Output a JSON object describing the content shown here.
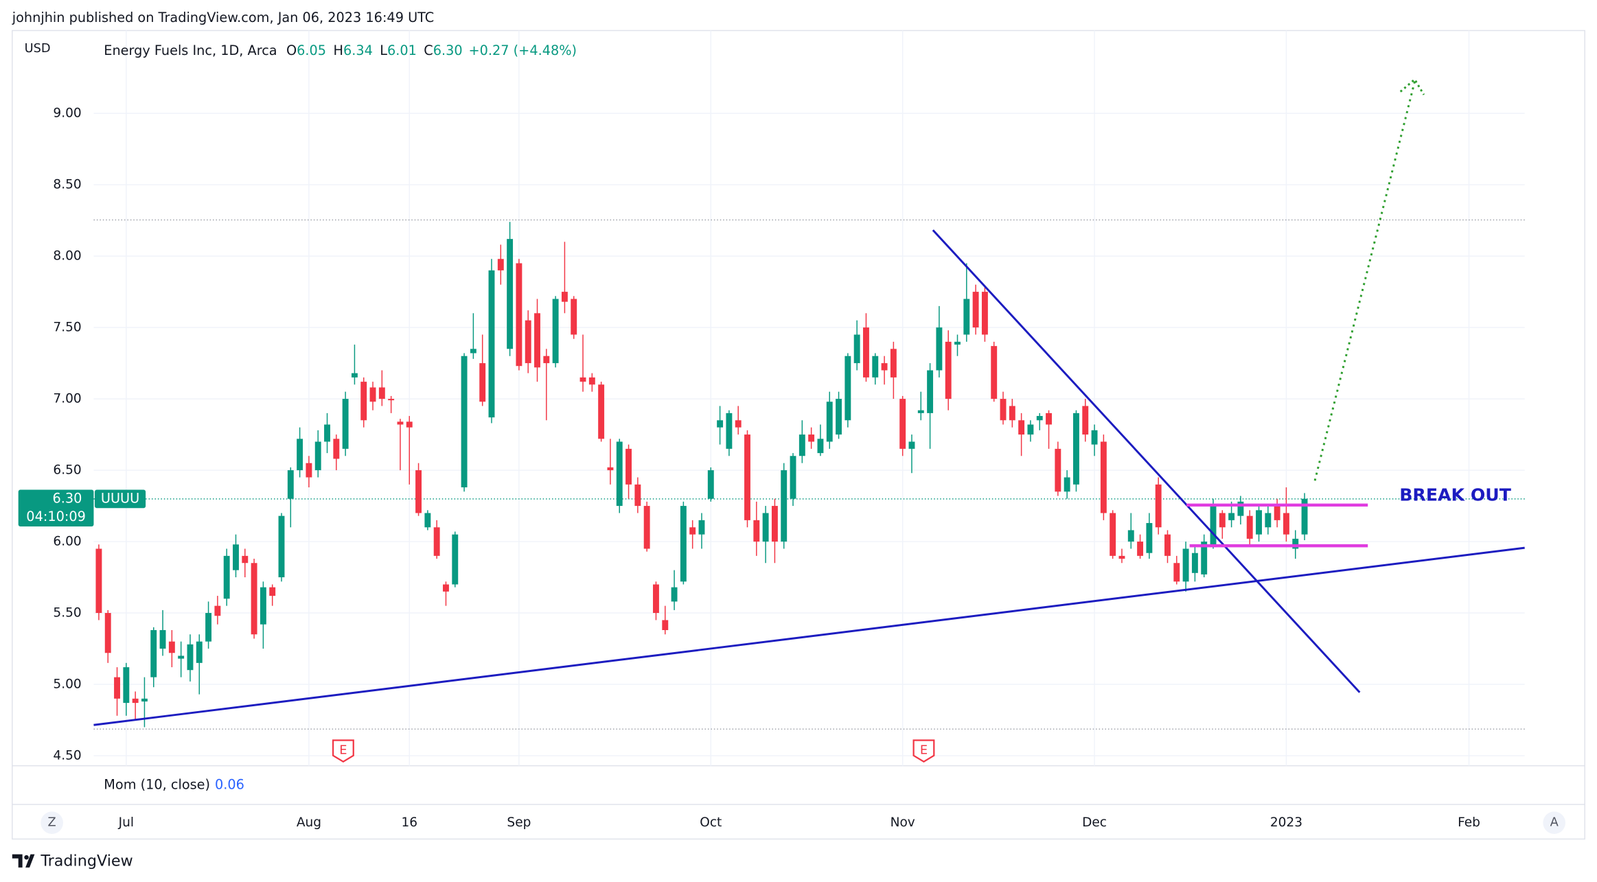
{
  "header": "johnjhin published on TradingView.com, Jan 06, 2023 16:49 UTC",
  "footer": "TradingView",
  "chart_data": {
    "type": "candlestick",
    "currency": "USD",
    "legend": {
      "title": "Energy Fuels Inc, 1D, Arca",
      "items": [
        {
          "key": "O",
          "value": "6.05"
        },
        {
          "key": "H",
          "value": "6.34"
        },
        {
          "key": "L",
          "value": "6.01"
        },
        {
          "key": "C",
          "value": "6.30"
        }
      ],
      "change": "+0.27 (+4.48%)"
    },
    "last_price": {
      "price": "6.30",
      "countdown": "04:10:09",
      "symbol": "UUUU"
    },
    "annotation": "BREAK OUT",
    "indicator": {
      "name": "Mom (10, close)",
      "value": "0.06"
    },
    "events": [
      "E",
      "E"
    ],
    "corner_buttons": [
      "Z",
      "A"
    ],
    "up_color": "#089981",
    "down_color": "#f23645",
    "grid": true,
    "ylim": [
      4.43,
      9.58
    ],
    "yticks": [
      {
        "value": 4.5,
        "label": "4.50"
      },
      {
        "value": 5,
        "label": "5.00"
      },
      {
        "value": 5.5,
        "label": "5.50"
      },
      {
        "value": 6,
        "label": "6.00"
      },
      {
        "value": 6.5,
        "label": "6.50"
      },
      {
        "value": 7,
        "label": "7.00"
      },
      {
        "value": 7.5,
        "label": "7.50"
      },
      {
        "value": 8,
        "label": "8.00"
      },
      {
        "value": 8.5,
        "label": "8.50"
      },
      {
        "value": 9,
        "label": "9.00"
      }
    ],
    "xlim": [
      -0.56,
      156.1
    ],
    "xticks": [
      {
        "value": 3,
        "label": "Jul"
      },
      {
        "value": 23,
        "label": "Aug"
      },
      {
        "value": 34,
        "label": "16"
      },
      {
        "value": 46,
        "label": "Sep"
      },
      {
        "value": 67,
        "label": "Oct"
      },
      {
        "value": 88,
        "label": "Nov"
      },
      {
        "value": 109,
        "label": "Dec"
      },
      {
        "value": 130,
        "label": "2023"
      },
      {
        "value": 150,
        "label": "Feb"
      }
    ],
    "open": [
      5.95,
      5.5,
      5.05,
      4.87,
      4.9,
      4.88,
      5.05,
      5.25,
      5.3,
      5.18,
      5.1,
      5.15,
      5.3,
      5.55,
      5.6,
      5.8,
      5.9,
      5.85,
      5.42,
      5.68,
      5.75,
      6.3,
      6.5,
      6.55,
      6.5,
      6.7,
      6.72,
      6.65,
      7.15,
      7.12,
      7.08,
      7.08,
      7.0,
      6.84,
      6.84,
      6.5,
      6.1,
      6.1,
      5.7,
      5.7,
      6.38,
      7.32,
      7.25,
      6.87,
      7.98,
      7.35,
      7.95,
      7.55,
      7.6,
      7.3,
      7.25,
      7.75,
      7.7,
      7.15,
      7.15,
      7.1,
      6.52,
      6.25,
      6.65,
      6.4,
      6.25,
      5.7,
      5.45,
      5.58,
      5.72,
      6.1,
      6.05,
      6.3,
      6.8,
      6.65,
      6.85,
      6.75,
      6.15,
      6.0,
      6.25,
      6.0,
      6.3,
      6.6,
      6.75,
      6.62,
      6.7,
      6.75,
      6.85,
      7.25,
      7.5,
      7.15,
      7.25,
      7.35,
      7.0,
      6.65,
      6.9,
      6.9,
      7.2,
      7.4,
      7.38,
      7.45,
      7.75,
      7.75,
      7.37,
      7.0,
      6.95,
      6.85,
      6.75,
      6.85,
      6.9,
      6.65,
      6.35,
      6.4,
      6.95,
      6.68,
      6.7,
      6.2,
      5.9,
      6.0,
      6.0,
      5.92,
      6.4,
      6.05,
      5.85,
      5.72,
      5.78,
      5.77,
      5.98,
      6.2,
      6.15,
      6.18,
      6.18,
      6.05,
      6.1,
      6.25,
      6.2,
      5.95,
      6.05
    ],
    "high": [
      5.98,
      5.52,
      5.12,
      5.15,
      4.95,
      5.05,
      5.4,
      5.52,
      5.38,
      5.3,
      5.35,
      5.35,
      5.58,
      5.62,
      5.95,
      6.05,
      5.95,
      5.88,
      5.72,
      5.7,
      6.2,
      6.52,
      6.8,
      6.6,
      6.78,
      6.9,
      6.75,
      7.05,
      7.38,
      7.15,
      7.12,
      7.2,
      7.02,
      6.86,
      6.88,
      6.55,
      6.22,
      6.15,
      5.72,
      6.07,
      7.32,
      7.6,
      7.45,
      7.98,
      8.08,
      8.24,
      7.98,
      7.62,
      7.7,
      7.35,
      7.72,
      8.1,
      7.72,
      7.45,
      7.18,
      7.12,
      6.72,
      6.72,
      6.68,
      6.45,
      6.28,
      5.72,
      5.55,
      5.8,
      6.28,
      6.15,
      6.2,
      6.52,
      6.95,
      6.92,
      6.95,
      6.78,
      6.28,
      6.25,
      6.3,
      6.55,
      6.62,
      6.85,
      6.8,
      6.82,
      7.05,
      7.05,
      7.32,
      7.55,
      7.6,
      7.32,
      7.3,
      7.4,
      7.02,
      6.75,
      7.05,
      7.25,
      7.65,
      7.48,
      7.45,
      7.95,
      7.8,
      7.78,
      7.4,
      7.05,
      7.0,
      6.9,
      6.85,
      6.9,
      6.92,
      6.7,
      6.5,
      6.92,
      7.0,
      6.82,
      6.75,
      6.22,
      5.95,
      6.2,
      6.05,
      6.2,
      6.45,
      6.08,
      5.9,
      6.0,
      5.98,
      6.05,
      6.3,
      6.22,
      6.28,
      6.32,
      6.22,
      6.25,
      6.25,
      6.3,
      6.38,
      6.08,
      6.34
    ],
    "low": [
      5.45,
      5.15,
      4.78,
      4.78,
      4.75,
      4.7,
      4.98,
      5.2,
      5.12,
      5.05,
      5.02,
      4.93,
      5.25,
      5.42,
      5.55,
      5.75,
      5.75,
      5.32,
      5.25,
      5.55,
      5.72,
      6.1,
      6.45,
      6.38,
      6.45,
      6.62,
      6.5,
      6.6,
      7.1,
      6.8,
      6.92,
      6.95,
      6.9,
      6.5,
      6.4,
      6.18,
      6.08,
      5.88,
      5.55,
      5.68,
      6.35,
      7.28,
      6.95,
      6.83,
      7.8,
      7.3,
      7.2,
      7.18,
      7.12,
      6.85,
      7.22,
      7.6,
      7.42,
      7.05,
      7.05,
      6.7,
      6.4,
      6.2,
      6.3,
      6.2,
      5.93,
      5.45,
      5.35,
      5.52,
      5.7,
      5.95,
      5.95,
      6.28,
      6.68,
      6.6,
      6.75,
      6.1,
      5.9,
      5.85,
      5.85,
      5.95,
      6.25,
      6.55,
      6.65,
      6.6,
      6.65,
      6.72,
      6.8,
      7.2,
      7.12,
      7.1,
      7.1,
      7.0,
      6.6,
      6.48,
      6.85,
      6.65,
      7.15,
      6.92,
      7.3,
      7.4,
      7.45,
      7.4,
      6.98,
      6.82,
      6.8,
      6.6,
      6.7,
      6.78,
      6.65,
      6.32,
      6.3,
      6.35,
      6.7,
      6.6,
      6.15,
      5.88,
      5.85,
      5.95,
      5.88,
      5.88,
      6.05,
      5.85,
      5.7,
      5.65,
      5.72,
      5.75,
      5.95,
      6.02,
      6.1,
      6.12,
      5.98,
      6.0,
      6.05,
      6.1,
      6.0,
      5.88,
      6.01
    ],
    "close": [
      5.5,
      5.22,
      4.9,
      5.12,
      4.87,
      4.9,
      5.38,
      5.38,
      5.22,
      5.2,
      5.28,
      5.3,
      5.5,
      5.48,
      5.9,
      5.98,
      5.85,
      5.35,
      5.68,
      5.62,
      6.18,
      6.5,
      6.72,
      6.45,
      6.7,
      6.82,
      6.58,
      7.0,
      7.18,
      6.85,
      6.98,
      7.0,
      6.99,
      6.82,
      6.8,
      6.2,
      6.2,
      5.9,
      5.65,
      6.05,
      7.3,
      7.35,
      6.98,
      7.9,
      7.9,
      8.12,
      7.23,
      7.25,
      7.22,
      7.25,
      7.7,
      7.68,
      7.45,
      7.12,
      7.1,
      6.72,
      6.5,
      6.7,
      6.4,
      6.25,
      5.95,
      5.5,
      5.38,
      5.68,
      6.25,
      6.05,
      6.15,
      6.5,
      6.85,
      6.9,
      6.8,
      6.15,
      6.0,
      6.2,
      6.0,
      6.5,
      6.6,
      6.75,
      6.7,
      6.72,
      6.98,
      7.0,
      7.3,
      7.45,
      7.15,
      7.3,
      7.2,
      7.15,
      6.65,
      6.7,
      6.92,
      7.2,
      7.5,
      7.0,
      7.4,
      7.7,
      7.5,
      7.45,
      7.0,
      6.85,
      6.85,
      6.75,
      6.82,
      6.88,
      6.82,
      6.35,
      6.45,
      6.9,
      6.75,
      6.78,
      6.2,
      5.9,
      5.88,
      6.08,
      5.9,
      6.13,
      6.1,
      5.9,
      5.72,
      5.95,
      5.92,
      6.0,
      6.25,
      6.1,
      6.2,
      6.28,
      6.02,
      6.22,
      6.2,
      6.15,
      6.05,
      6.02,
      6.3
    ]
  }
}
